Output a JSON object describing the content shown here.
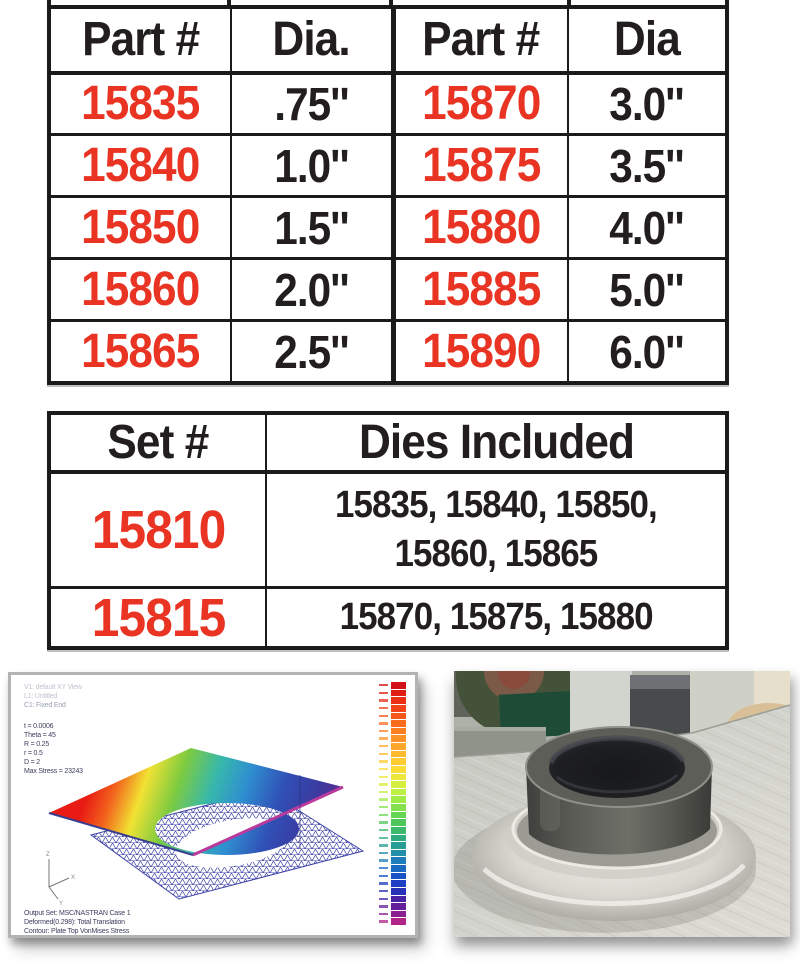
{
  "part_table": {
    "headers": [
      "Part #",
      "Dia.",
      "Part #",
      "Dia"
    ],
    "rows": [
      [
        "15835",
        ".75''",
        "15870",
        "3.0''"
      ],
      [
        "15840",
        "1.0''",
        "15875",
        "3.5''"
      ],
      [
        "15850",
        "1.5''",
        "15880",
        "4.0''"
      ],
      [
        "15860",
        "2.0''",
        "15885",
        "5.0''"
      ],
      [
        "15865",
        "2.5''",
        "15890",
        "6.0''"
      ]
    ]
  },
  "set_table": {
    "headers": [
      "Set #",
      "Dies Included"
    ],
    "rows": [
      {
        "set": "15810",
        "dies": "15835, 15840, 15850,\n15860, 15865"
      },
      {
        "set": "15815",
        "dies": "15870, 15875, 15880"
      }
    ]
  },
  "colors": {
    "part_number_red": "#e93323",
    "table_text_black": "#221e1f",
    "table_border_black": "#1b1b1b"
  },
  "fea_panel": {
    "view_labels": [
      "V1: default XY View",
      "L1: Untitled",
      "C1: Fixed End"
    ],
    "parameter_lines": [
      "t = 0.0006",
      "Theta = 45",
      "R = 0.25",
      "r = 0.5",
      "D = 2",
      "Max Stress = 23243"
    ],
    "footer_lines": [
      "Output Set: MSC/NASTRAN Case 1",
      "Deformed(0.298): Total Translation",
      "Contour: Plate Top VonMises Stress"
    ],
    "triad_labels": {
      "z": "Z",
      "x": "X",
      "y": "Y"
    },
    "colorbar_colors": [
      "#d31016",
      "#e01d12",
      "#ea2f15",
      "#f24418",
      "#f6581b",
      "#fa6c1e",
      "#fc7f22",
      "#fd9326",
      "#fea72a",
      "#feba2e",
      "#fecb32",
      "#fbdc36",
      "#ece73a",
      "#d6ee3e",
      "#bdf043",
      "#a0ec47",
      "#82e14c",
      "#66d551",
      "#4ec659",
      "#3cb96b",
      "#2fab80",
      "#289d95",
      "#228ea9",
      "#1e7cba",
      "#1b68c3",
      "#1a53c8",
      "#1d3fc4",
      "#2930b8",
      "#4a22a4",
      "#661f9a",
      "#8a2090",
      "#b02387"
    ]
  }
}
